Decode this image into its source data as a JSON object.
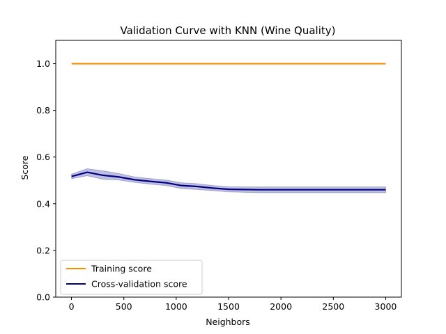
{
  "chart_data": {
    "type": "line",
    "title": "Validation Curve with KNN (Wine Quality)",
    "xlabel": "Neighbors",
    "ylabel": "Score",
    "xlim": [
      -150,
      3150
    ],
    "ylim": [
      0,
      1.1
    ],
    "xticks": [
      0,
      500,
      1000,
      1500,
      2000,
      2500,
      3000
    ],
    "yticks": [
      0.0,
      0.2,
      0.4,
      0.6,
      0.8,
      1.0
    ],
    "xtick_labels": [
      "0",
      "500",
      "1000",
      "1500",
      "2000",
      "2500",
      "3000"
    ],
    "ytick_labels": [
      "0.0",
      "0.2",
      "0.4",
      "0.6",
      "0.8",
      "1.0"
    ],
    "legend_position": "lower-left",
    "grid": false,
    "x": [
      1,
      150,
      300,
      450,
      600,
      750,
      900,
      1050,
      1200,
      1350,
      1500,
      1650,
      1800,
      1950,
      2100,
      2250,
      2400,
      2550,
      2700,
      2850,
      3000
    ],
    "series": [
      {
        "name": "Training score",
        "color": "#ff8c00",
        "values": [
          1.0,
          1.0,
          1.0,
          1.0,
          1.0,
          1.0,
          1.0,
          1.0,
          1.0,
          1.0,
          1.0,
          1.0,
          1.0,
          1.0,
          1.0,
          1.0,
          1.0,
          1.0,
          1.0,
          1.0,
          1.0
        ]
      },
      {
        "name": "Cross-validation score",
        "color": "#000080",
        "band_color": "#000080",
        "values": [
          0.517,
          0.535,
          0.522,
          0.515,
          0.503,
          0.496,
          0.49,
          0.478,
          0.474,
          0.467,
          0.462,
          0.461,
          0.46,
          0.46,
          0.46,
          0.46,
          0.46,
          0.46,
          0.46,
          0.46,
          0.46
        ],
        "band_lower": [
          0.507,
          0.52,
          0.505,
          0.502,
          0.492,
          0.484,
          0.478,
          0.465,
          0.461,
          0.456,
          0.451,
          0.449,
          0.447,
          0.447,
          0.447,
          0.447,
          0.447,
          0.447,
          0.447,
          0.447,
          0.447
        ],
        "band_upper": [
          0.527,
          0.55,
          0.541,
          0.53,
          0.515,
          0.508,
          0.502,
          0.49,
          0.486,
          0.478,
          0.473,
          0.472,
          0.472,
          0.472,
          0.472,
          0.472,
          0.472,
          0.472,
          0.472,
          0.472,
          0.472
        ]
      }
    ]
  }
}
